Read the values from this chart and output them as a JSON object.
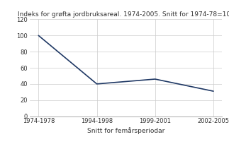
{
  "title": "Indeks for grøfta jordbruksareal. 1974-2005. Snitt for 1974-78=100",
  "xlabel": "Snitt for femårsperiodar",
  "ylabel": "",
  "x_labels": [
    "1974-1978",
    "1994-1998",
    "1999-2001",
    "2002-2005"
  ],
  "y_values": [
    100,
    40,
    46,
    31
  ],
  "ylim": [
    0,
    120
  ],
  "yticks": [
    0,
    20,
    40,
    60,
    80,
    100,
    120
  ],
  "line_color": "#1f3864",
  "background_color": "#ffffff",
  "title_fontsize": 6.5,
  "tick_fontsize": 6,
  "xlabel_fontsize": 6.5,
  "grid_color": "#cccccc",
  "spine_color": "#aaaaaa"
}
